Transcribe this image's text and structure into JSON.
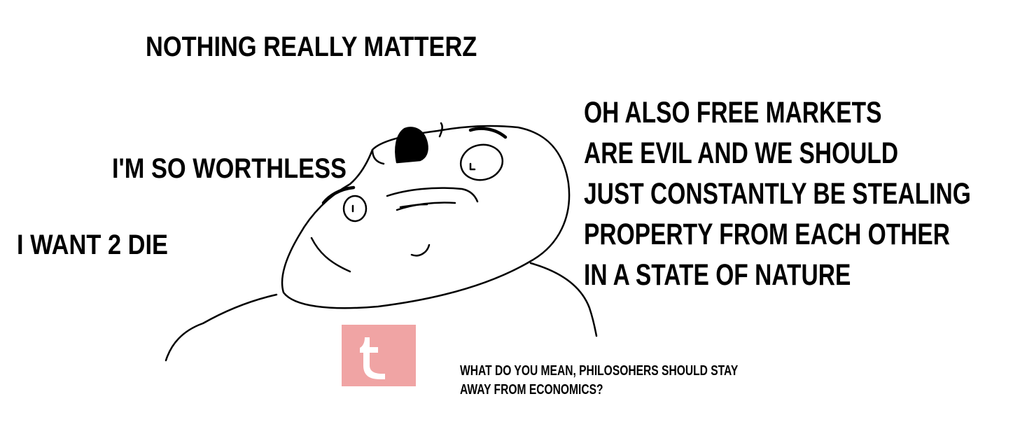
{
  "captions": {
    "title": "NOTHING REALLY MATTERZ",
    "worthless": "I'M SO WORTHLESS",
    "die": "I WANT 2 DIE",
    "markets": [
      "OH ALSO FREE MARKETS",
      "ARE EVIL AND WE SHOULD",
      "JUST CONSTANTLY BE STEALING",
      "PROPERTY FROM EACH OTHER",
      "IN A STATE OF NATURE"
    ],
    "economics": [
      "WHAT DO YOU MEAN, PHILOSOHERS SHOULD STAY",
      "AWAY FROM ECONOMICS?"
    ]
  },
  "logo": {
    "icon": "tumblr-logo",
    "color": "#f0a4a4"
  },
  "colors": {
    "ink": "#000000",
    "background": "#ffffff"
  }
}
